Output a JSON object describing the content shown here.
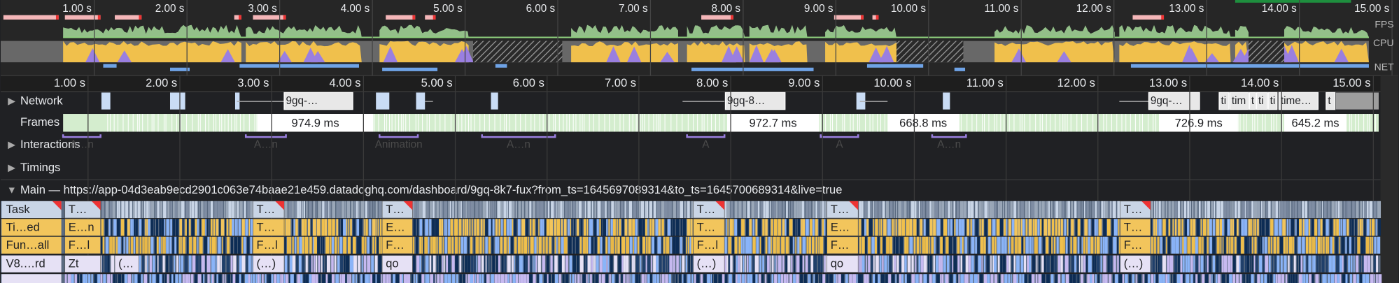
{
  "overview": {
    "time_labels": [
      "1.00 s",
      "2.00 s",
      "3.00 s",
      "4.00 s",
      "5.00 s",
      "6.00 s",
      "7.00 s",
      "8.00 s",
      "9.00 s",
      "10.00 s",
      "11.00 s",
      "12.00 s",
      "13.00 s",
      "14.00 s",
      "15.00 s"
    ],
    "lane_labels": [
      "FPS",
      "CPU",
      "NET"
    ]
  },
  "ruler": {
    "time_labels": [
      "1.00 s",
      "2.00 s",
      "3.00 s",
      "4.00 s",
      "5.00 s",
      "6.00 s",
      "7.00 s",
      "8.00 s",
      "9.00 s",
      "10.00 s",
      "11.00 s",
      "12.00 s",
      "13.00 s",
      "14.00 s",
      "15.00 s"
    ]
  },
  "tracks": {
    "network": {
      "label": "Network",
      "requests": [
        "9gq-…",
        "9gq-8…",
        "9gq-…",
        "ti",
        "tim",
        "t",
        "ti",
        "ti",
        "time…",
        "t"
      ]
    },
    "frames": {
      "label": "Frames",
      "durations": [
        "974.9 ms",
        "972.7 ms",
        "668.8 ms",
        "726.9 ms",
        "645.2 ms"
      ]
    },
    "interactions": {
      "label": "Interactions",
      "items": [
        "A…n",
        "A…n",
        "Animation",
        "A…n",
        "A",
        "A",
        "A…n"
      ]
    },
    "timings": {
      "label": "Timings"
    }
  },
  "main": {
    "title": "Main — https://app-04d3eab9ecd2901c063e74baae21e459.datadoghq.com/dashboard/9gq-8k7-fux?from_ts=1645697089314&to_ts=1645700689314&live=true",
    "row_labels": [
      "Task",
      "Ti…ed",
      "Fun…all",
      "V8.…rd"
    ],
    "blocks": [
      [
        "T…",
        "T…",
        "T…",
        "T…",
        "T…",
        "T…"
      ],
      [
        "E…n",
        "T…",
        "E…",
        "T…",
        "E…",
        "T…"
      ],
      [
        "F…l",
        "F…l",
        "F…",
        "F…l",
        "F…",
        "F…"
      ],
      [
        "Zt",
        "(…",
        "(…)",
        "qo",
        "(…)",
        "qo",
        "(…)"
      ]
    ]
  }
}
